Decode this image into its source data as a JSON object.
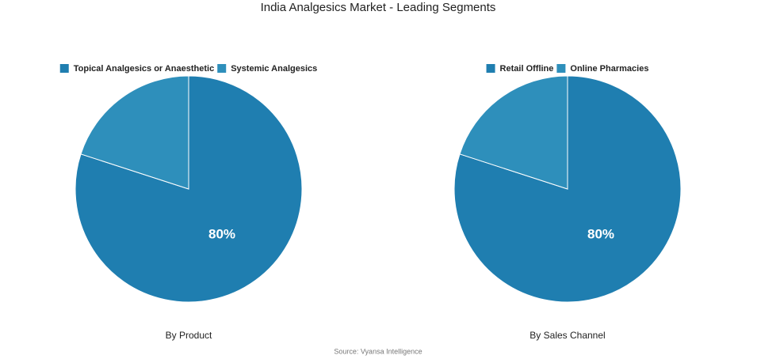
{
  "title": "India Analgesics Market - Leading Segments",
  "source": "Source: Vyansa Intelligence",
  "chart_data": [
    {
      "type": "pie",
      "title": "By Product",
      "categories": [
        "Topical Analgesics or Anaesthetic",
        "Systemic Analgesics"
      ],
      "values": [
        80,
        20
      ],
      "value_labels": [
        "80%",
        null
      ],
      "colors": [
        "#1f7eb0",
        "#2e8fbb"
      ]
    },
    {
      "type": "pie",
      "title": "By Sales Channel",
      "categories": [
        "Retail Offline",
        "Online Pharmacies"
      ],
      "values": [
        80,
        20
      ],
      "value_labels": [
        "80%",
        null
      ],
      "colors": [
        "#1f7eb0",
        "#2e8fbb"
      ]
    }
  ]
}
